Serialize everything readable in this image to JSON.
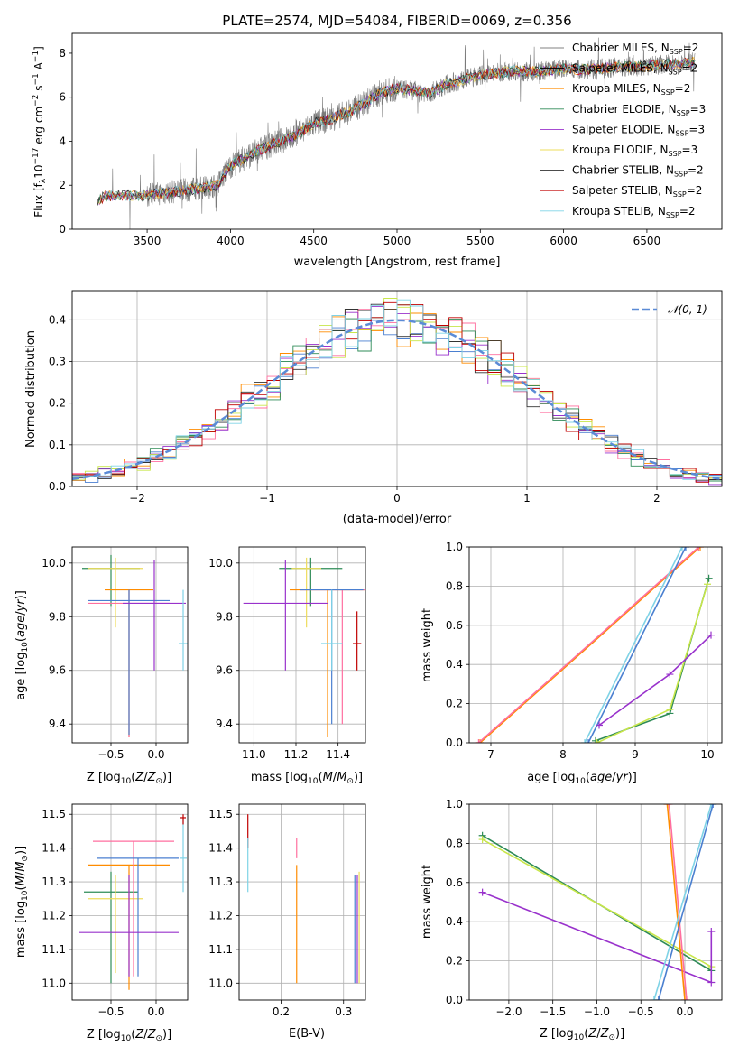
{
  "title": "PLATE=2574, MJD=54084, FIBERID=0069, z=0.356",
  "colors": {
    "models": [
      "#808080",
      "#000000",
      "#ff8c00",
      "#2e8b57",
      "#9932cc",
      "#eedc5b",
      "#333333",
      "#c00000",
      "#7fd3e6"
    ],
    "gaussian": "#5b8bd6",
    "grid": "#b0b0b0"
  },
  "chart_data": [
    {
      "id": "spectrum",
      "type": "line",
      "xlabel": "wavelength [Angstrom, rest frame]",
      "ylabel": "Flux [f$_\\lambda$10$^{-17}$ erg cm$^{-2}$ s$^{-1}$ A$^{-1}$]",
      "xlim": [
        3050,
        6950
      ],
      "ylim": [
        0,
        8.9
      ],
      "xticks": [
        3500,
        4000,
        4500,
        5000,
        5500,
        6000,
        6500
      ],
      "yticks": [
        0,
        2,
        4,
        6,
        8
      ],
      "legend_position": "top-right",
      "legend": [
        "Chabrier MILES, N_SSP=2",
        "Salpeter MILES, N_SSP=2",
        "Kroupa MILES, N_SSP=2",
        "Chabrier ELODIE, N_SSP=3",
        "Salpeter ELODIE, N_SSP=3",
        "Kroupa ELODIE, N_SSP=3",
        "Chabrier STELIB, N_SSP=2",
        "Salpeter STELIB, N_SSP=2",
        "Kroupa STELIB, N_SSP=2"
      ],
      "continuum": {
        "x": [
          3200,
          3250,
          3350,
          3450,
          3550,
          3650,
          3750,
          3850,
          3920,
          4000,
          4100,
          4200,
          4300,
          4400,
          4500,
          4600,
          4700,
          4800,
          4900,
          5000,
          5100,
          5200,
          5300,
          5400,
          5500,
          5600,
          5700,
          5800,
          5900,
          6000,
          6100,
          6200,
          6300,
          6400,
          6500,
          6600,
          6700,
          6790
        ],
        "y": [
          1.3,
          1.5,
          1.55,
          1.5,
          1.6,
          1.7,
          1.8,
          1.9,
          2.0,
          2.9,
          3.3,
          3.7,
          4.0,
          4.3,
          4.8,
          5.0,
          5.3,
          5.7,
          6.2,
          6.4,
          6.3,
          6.2,
          6.6,
          6.8,
          7.0,
          7.1,
          7.2,
          7.15,
          7.2,
          7.3,
          7.25,
          7.3,
          7.35,
          7.4,
          7.4,
          7.5,
          7.5,
          7.6
        ]
      }
    },
    {
      "id": "residuals",
      "type": "line",
      "xlabel": "(data-model)/error",
      "ylabel": "Normed distribution",
      "xlim": [
        -2.5,
        2.5
      ],
      "ylim": [
        0,
        0.47
      ],
      "xticks": [
        -2,
        -1,
        0,
        1,
        2
      ],
      "yticks": [
        0.0,
        0.1,
        0.2,
        0.3,
        0.4
      ],
      "legend_position": "top-right",
      "legend": [
        "N(0,1)"
      ]
    },
    {
      "id": "age_vs_Z",
      "type": "scatter",
      "xlabel": "Z [log10(Z/Z⊙)]",
      "ylabel": "age  [log10(age/yr)]",
      "xlim": [
        -0.93,
        0.35
      ],
      "ylim": [
        9.33,
        10.06
      ],
      "xticks": [
        -0.5,
        0.0
      ],
      "yticks": [
        9.4,
        9.6,
        9.8,
        10.0
      ],
      "points": [
        {
          "x": -0.5,
          "y": 9.98,
          "xerr": 0.32,
          "yerr": [
            0.14,
            0.05
          ],
          "color": "#2e8b57"
        },
        {
          "x": -0.45,
          "y": 9.98,
          "xerr": 0.3,
          "yerr": [
            0.22,
            0.04
          ],
          "color": "#eedc5b"
        },
        {
          "x": -0.3,
          "y": 9.9,
          "xerr": 0.27,
          "yerr": [
            0.55,
            0.0
          ],
          "color": "#ff8c00"
        },
        {
          "x": -0.3,
          "y": 9.85,
          "xerr": 0.45,
          "yerr": [
            0.5,
            0.05
          ],
          "color": "#ff6f9f"
        },
        {
          "x": -0.3,
          "y": 9.86,
          "xerr": 0.45,
          "yerr": [
            0.5,
            0.04
          ],
          "color": "#4a7fd0"
        },
        {
          "x": -0.02,
          "y": 9.85,
          "xerr": 0.35,
          "yerr": [
            0.25,
            0.16
          ],
          "color": "#9932cc"
        },
        {
          "x": 0.3,
          "y": 9.7,
          "xerr": 0.05,
          "yerr": [
            0.1,
            0.2
          ],
          "color": "#7fd3e6"
        }
      ]
    },
    {
      "id": "age_vs_mass",
      "type": "scatter",
      "xlabel": "mass [log10(M/M⊙)]",
      "ylabel": "",
      "xlim": [
        10.93,
        11.53
      ],
      "ylim": [
        9.33,
        10.06
      ],
      "xticks": [
        11.0,
        11.2,
        11.4
      ],
      "yticks": [
        9.4,
        9.6,
        9.8,
        10.0
      ],
      "points": [
        {
          "x": 11.27,
          "y": 9.98,
          "xerr": 0.15,
          "yerr": [
            0.14,
            0.04
          ],
          "color": "#2e8b57"
        },
        {
          "x": 11.25,
          "y": 9.98,
          "xerr": 0.07,
          "yerr": [
            0.22,
            0.04
          ],
          "color": "#eedc5b"
        },
        {
          "x": 11.35,
          "y": 9.9,
          "xerr": 0.18,
          "yerr": [
            0.55,
            0.0
          ],
          "color": "#ff8c00"
        },
        {
          "x": 11.42,
          "y": 9.9,
          "xerr": 0.2,
          "yerr": [
            0.5,
            0.0
          ],
          "color": "#ff6f9f"
        },
        {
          "x": 11.37,
          "y": 9.9,
          "xerr": 0.15,
          "yerr": [
            0.5,
            0.0
          ],
          "color": "#4a7fd0"
        },
        {
          "x": 11.15,
          "y": 9.85,
          "xerr": 0.2,
          "yerr": [
            0.25,
            0.16
          ],
          "color": "#9932cc"
        },
        {
          "x": 11.37,
          "y": 9.7,
          "xerr": 0.05,
          "yerr": [
            0.1,
            0.2
          ],
          "color": "#7fd3e6"
        },
        {
          "x": 11.49,
          "y": 9.7,
          "xerr": 0.02,
          "yerr": [
            0.1,
            0.12
          ],
          "color": "#c00000"
        }
      ]
    },
    {
      "id": "weight_vs_age",
      "type": "line",
      "xlabel": "age  [log10(age/yr)]",
      "ylabel": "mass weight",
      "xlim": [
        6.7,
        10.2
      ],
      "ylim": [
        0,
        1
      ],
      "xticks": [
        7,
        8,
        9,
        10
      ],
      "yticks": [
        0.0,
        0.2,
        0.4,
        0.6,
        0.8,
        1.0
      ],
      "series": [
        {
          "x": [
            6.85,
            9.9
          ],
          "y": [
            0.0,
            1.0
          ],
          "color": "#ff8c00"
        },
        {
          "x": [
            6.83,
            9.88
          ],
          "y": [
            0.0,
            1.0
          ],
          "color": "#ff6f9f"
        },
        {
          "x": [
            8.3,
            9.65
          ],
          "y": [
            0.0,
            1.0
          ],
          "color": "#7fd3e6"
        },
        {
          "x": [
            8.35,
            9.7
          ],
          "y": [
            0.0,
            1.0
          ],
          "color": "#4a7fd0"
        },
        {
          "x": [
            8.45,
            9.48,
            10.02
          ],
          "y": [
            0.01,
            0.15,
            0.84
          ],
          "color": "#2e8b57"
        },
        {
          "x": [
            8.47,
            9.48,
            10.0
          ],
          "y": [
            0.0,
            0.17,
            0.81
          ],
          "color": "#c8e64a"
        },
        {
          "x": [
            8.5,
            9.48,
            10.05
          ],
          "y": [
            0.09,
            0.35,
            0.55
          ],
          "color": "#9932cc"
        }
      ]
    },
    {
      "id": "mass_vs_Z",
      "type": "scatter",
      "xlabel": "Z [log10(Z/Z⊙)]",
      "ylabel": "mass [log10(M/M⊙)]",
      "xlim": [
        -0.93,
        0.35
      ],
      "ylim": [
        10.95,
        11.53
      ],
      "xticks": [
        -0.5,
        0.0
      ],
      "yticks": [
        11.0,
        11.1,
        11.2,
        11.3,
        11.4,
        11.5
      ],
      "points": [
        {
          "x": -0.5,
          "y": 11.27,
          "xerr": 0.3,
          "yerr": [
            0.27,
            0.06
          ],
          "color": "#2e8b57"
        },
        {
          "x": -0.45,
          "y": 11.25,
          "xerr": 0.3,
          "yerr": [
            0.22,
            0.07
          ],
          "color": "#eedc5b"
        },
        {
          "x": -0.3,
          "y": 11.35,
          "xerr": 0.45,
          "yerr": [
            0.37,
            0.0
          ],
          "color": "#ff8c00"
        },
        {
          "x": -0.25,
          "y": 11.42,
          "xerr": 0.45,
          "yerr": [
            0.4,
            0.0
          ],
          "color": "#ff6f9f"
        },
        {
          "x": -0.2,
          "y": 11.37,
          "xerr": 0.45,
          "yerr": [
            0.35,
            0.0
          ],
          "color": "#4a7fd0"
        },
        {
          "x": -0.3,
          "y": 11.15,
          "xerr": 0.55,
          "yerr": [
            0.13,
            0.17
          ],
          "color": "#9932cc"
        },
        {
          "x": 0.3,
          "y": 11.37,
          "xerr": 0.04,
          "yerr": [
            0.1,
            0.12
          ],
          "color": "#7fd3e6"
        },
        {
          "x": 0.3,
          "y": 11.49,
          "xerr": 0.03,
          "yerr": [
            0.02,
            0.01
          ],
          "color": "#c00000"
        }
      ]
    },
    {
      "id": "mass_vs_EBV",
      "type": "scatter",
      "xlabel": "E(B-V)",
      "ylabel": "",
      "xlim": [
        0.133,
        0.335
      ],
      "ylim": [
        10.95,
        11.53
      ],
      "xticks": [
        0.2,
        0.3
      ],
      "yticks": [
        11.0,
        11.1,
        11.2,
        11.3,
        11.4,
        11.5
      ],
      "points": [
        {
          "x": 0.147,
          "y": 11.45,
          "xerr": 0,
          "yerr": [
            0.05,
            0.05
          ],
          "color": "#c00000"
        },
        {
          "x": 0.147,
          "y": 11.35,
          "xerr": 0,
          "yerr": [
            0.08,
            0.08
          ],
          "color": "#7fd3e6"
        },
        {
          "x": 0.225,
          "y": 11.35,
          "xerr": 0,
          "yerr": [
            0.35,
            0.0
          ],
          "color": "#ff8c00"
        },
        {
          "x": 0.225,
          "y": 11.42,
          "xerr": 0,
          "yerr": [
            0.05,
            0.01
          ],
          "color": "#ff6f9f"
        },
        {
          "x": 0.318,
          "y": 11.15,
          "xerr": 0,
          "yerr": [
            0.15,
            0.17
          ],
          "color": "#4a7fd0"
        },
        {
          "x": 0.322,
          "y": 11.15,
          "xerr": 0,
          "yerr": [
            0.15,
            0.17
          ],
          "color": "#9932cc"
        },
        {
          "x": 0.325,
          "y": 11.2,
          "xerr": 0,
          "yerr": [
            0.2,
            0.13
          ],
          "color": "#eedc5b"
        }
      ]
    },
    {
      "id": "weight_vs_Z",
      "type": "line",
      "xlabel": "Z [log10(Z/Z⊙)]",
      "ylabel": "mass weight",
      "xlim": [
        -2.45,
        0.42
      ],
      "ylim": [
        0,
        1
      ],
      "xticks": [
        -2.0,
        -1.5,
        -1.0,
        -0.5,
        0.0
      ],
      "yticks": [
        0.0,
        0.2,
        0.4,
        0.6,
        0.8,
        1.0
      ],
      "series": [
        {
          "x": [
            -2.3,
            0.3
          ],
          "y": [
            0.84,
            0.15
          ],
          "color": "#2e8b57"
        },
        {
          "x": [
            -2.3,
            0.3
          ],
          "y": [
            0.82,
            0.17
          ],
          "color": "#c8e64a"
        },
        {
          "x": [
            -2.3,
            0.3,
            0.3
          ],
          "y": [
            0.55,
            0.09,
            0.35
          ],
          "color": "#9932cc"
        },
        {
          "x": [
            -0.2,
            0.0
          ],
          "y": [
            1.0,
            0.0
          ],
          "color": "#ff8c00"
        },
        {
          "x": [
            -0.18,
            0.02
          ],
          "y": [
            1.0,
            0.0
          ],
          "color": "#ff6f9f"
        },
        {
          "x": [
            -0.35,
            0.3
          ],
          "y": [
            0.0,
            1.0
          ],
          "color": "#7fd3e6"
        },
        {
          "x": [
            -0.3,
            0.32
          ],
          "y": [
            0.0,
            1.0
          ],
          "color": "#4a7fd0"
        }
      ]
    }
  ]
}
